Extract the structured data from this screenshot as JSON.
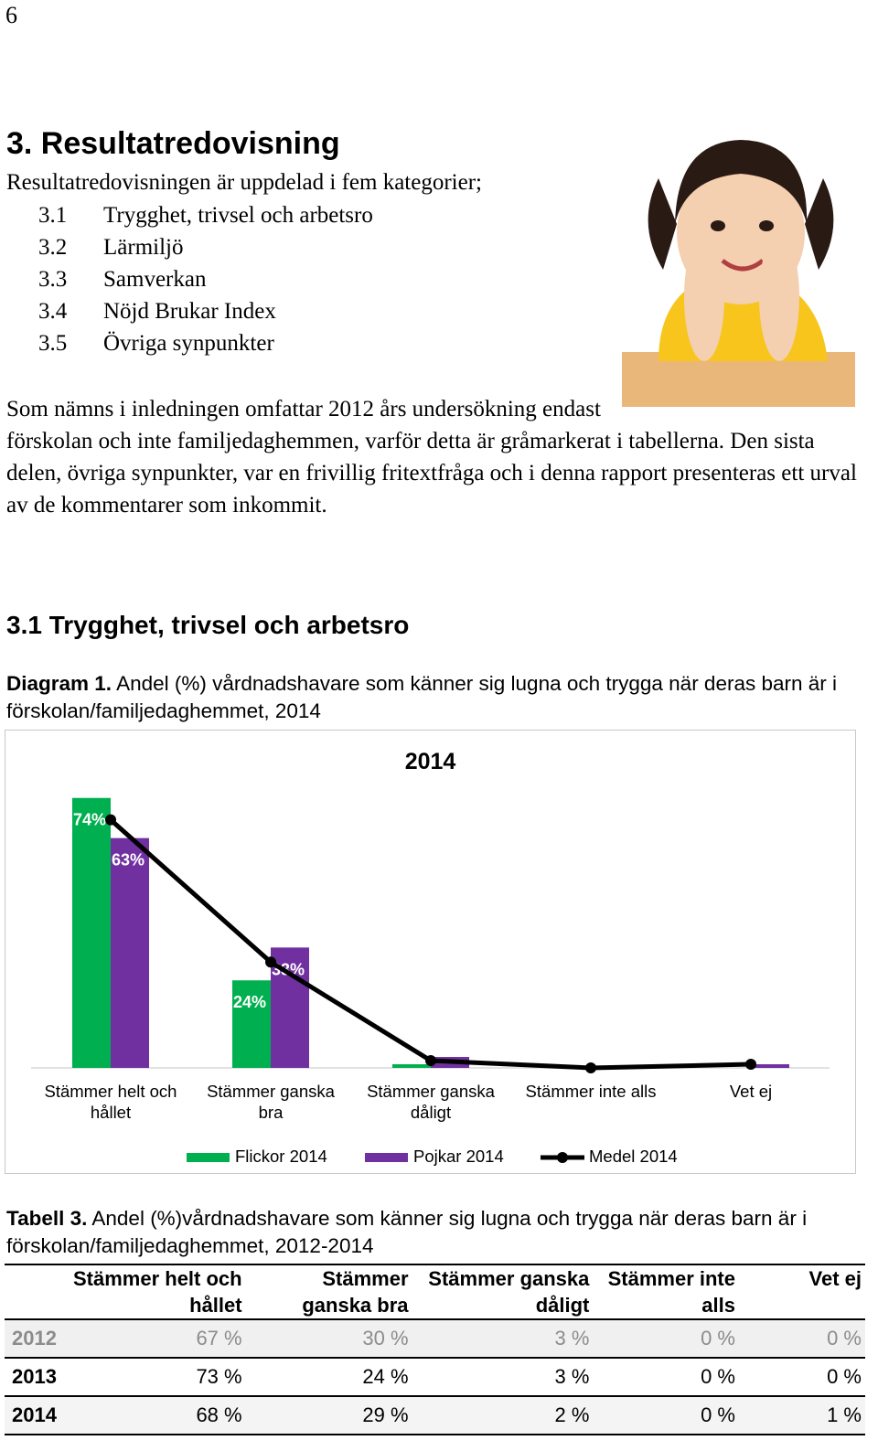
{
  "page_number": "6",
  "heading": "3. Resultatredovisning",
  "intro": "Resultatredovisningen är uppdelad i fem kategorier;",
  "list": [
    {
      "number": "3.1",
      "text": "Trygghet, trivsel och arbetsro"
    },
    {
      "number": "3.2",
      "text": "Lärmiljö"
    },
    {
      "number": "3.3",
      "text": "Samverkan"
    },
    {
      "number": "3.4",
      "text": "Nöjd Brukar Index"
    },
    {
      "number": "3.5",
      "text": "Övriga synpunkter"
    }
  ],
  "paragraph": "Som nämns i inledningen omfattar 2012 års undersökning endast förskolan och inte familjedaghemmen, varför detta är gråmarkerat i tabellerna. Den sista delen, övriga synpunkter, var en frivillig fritextfråga och i denna rapport presenteras ett urval av de kommentarer som inkommit.",
  "section_heading": "3.1 Trygghet, trivsel och arbetsro",
  "diagram_caption": {
    "label": "Diagram 1.",
    "text": "Andel (%) vårdnadshavare som känner sig lugna och trygga när deras barn är i förskolan/familjedaghemmet, 2014"
  },
  "chart_data": {
    "type": "bar",
    "title": "2014",
    "categories": [
      "Stämmer helt och hållet",
      "Stämmer ganska bra",
      "Stämmer ganska dåligt",
      "Stämmer inte alls",
      "Vet ej"
    ],
    "series": [
      {
        "name": "Flickor 2014",
        "color": "#00b050",
        "type": "bar",
        "values": [
          74,
          24,
          1,
          0,
          0
        ],
        "value_labels": [
          "74%",
          "24%",
          null,
          null,
          null
        ]
      },
      {
        "name": "Pojkar 2014",
        "color": "#7030a0",
        "type": "bar",
        "values": [
          63,
          33,
          3,
          0,
          1
        ],
        "value_labels": [
          "63%",
          "33%",
          null,
          null,
          null
        ]
      },
      {
        "name": "Medel 2014",
        "color": "#000000",
        "type": "line",
        "values": [
          68,
          29,
          2,
          0,
          1
        ]
      }
    ],
    "legend": "bottom"
  },
  "table_caption": {
    "label": "Tabell 3.",
    "text": "Andel (%)vårdnadshavare som känner sig lugna och trygga när deras barn är i förskolan/familjedaghemmet, 2012-2014"
  },
  "table": {
    "header": [
      "",
      "Stämmer helt och hållet",
      "Stämmer ganska bra",
      "Stämmer ganska dåligt",
      "Stämmer inte alls",
      "Vet ej"
    ],
    "rows": [
      [
        "2012",
        "67 %",
        "30 %",
        "3 %",
        "0 %",
        "0 %"
      ],
      [
        "2013",
        "73 %",
        "24 %",
        "3 %",
        "0 %",
        "0 %"
      ],
      [
        "2014",
        "68 %",
        "29 %",
        "2 %",
        "0 %",
        "1 %"
      ]
    ]
  }
}
